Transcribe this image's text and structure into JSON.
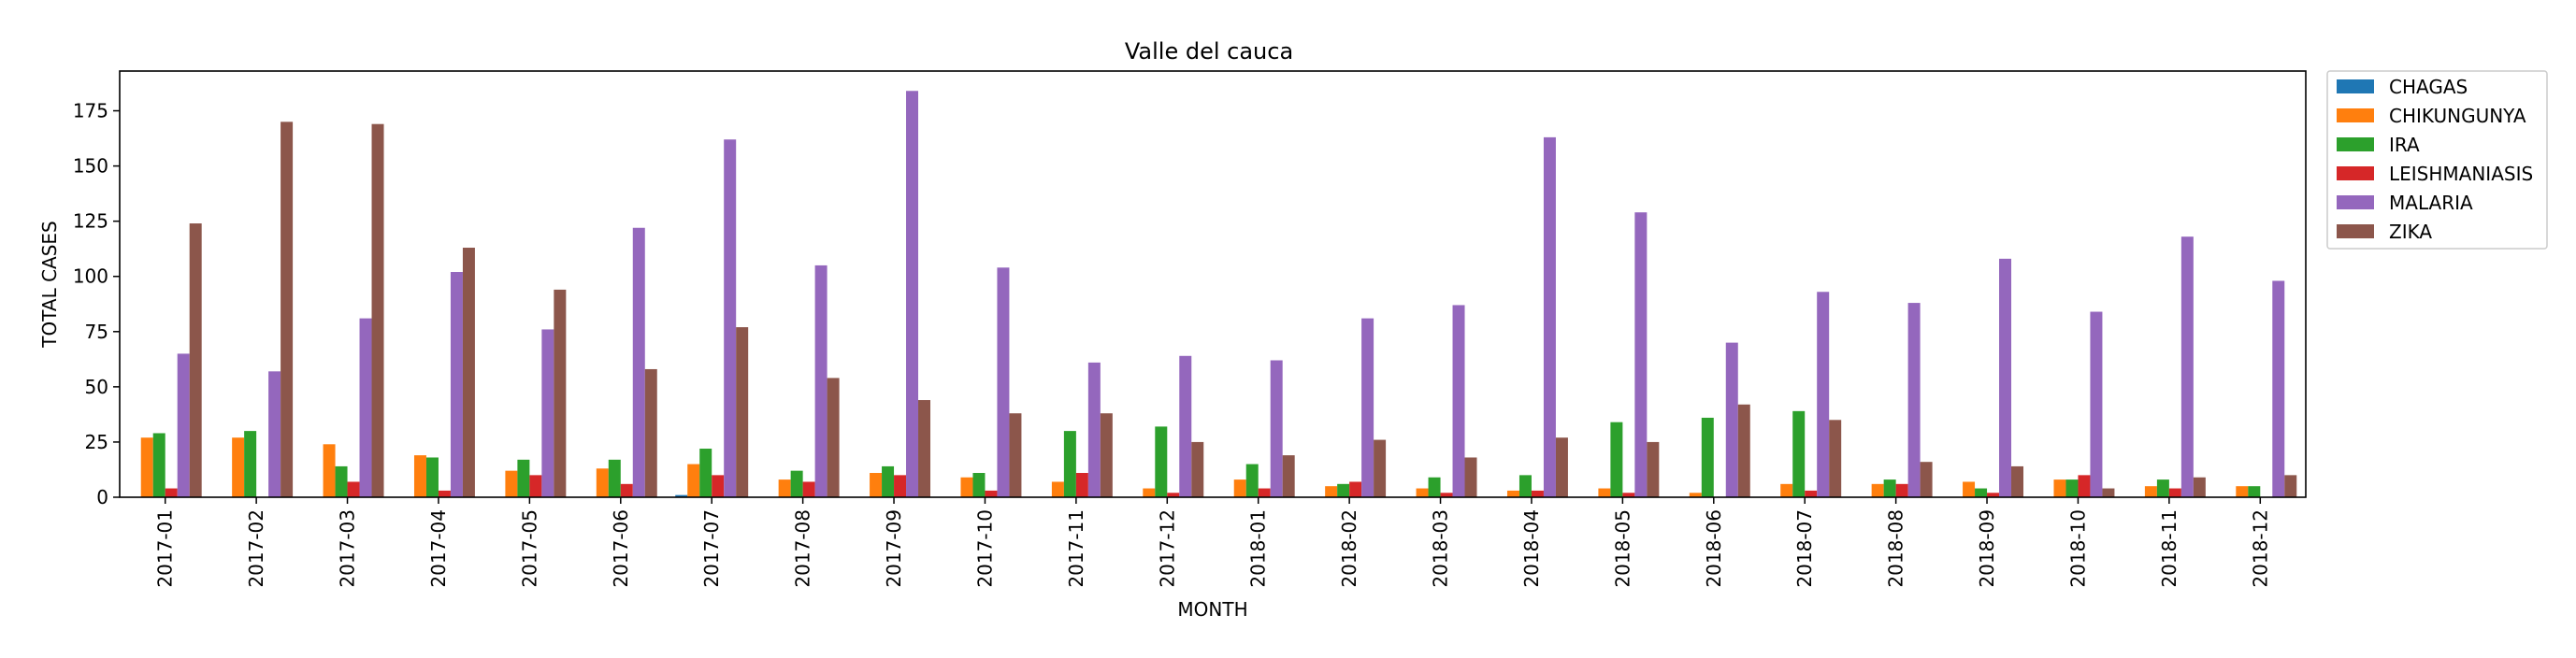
{
  "chart_data": {
    "type": "bar",
    "title": "Valle del cauca",
    "xlabel": "MONTH",
    "ylabel": "TOTAL CASES",
    "ylim": [
      0,
      193
    ],
    "yticks": [
      0,
      25,
      50,
      75,
      100,
      125,
      150,
      175
    ],
    "grid": false,
    "legend_position": "outside-top-right",
    "categories": [
      "2017-01",
      "2017-02",
      "2017-03",
      "2017-04",
      "2017-05",
      "2017-06",
      "2017-07",
      "2017-08",
      "2017-09",
      "2017-10",
      "2017-11",
      "2017-12",
      "2018-01",
      "2018-02",
      "2018-03",
      "2018-04",
      "2018-05",
      "2018-06",
      "2018-07",
      "2018-08",
      "2018-09",
      "2018-10",
      "2018-11",
      "2018-12"
    ],
    "series": [
      {
        "name": "CHAGAS",
        "color": "#1f77b4",
        "values": [
          0,
          0,
          0,
          0,
          0,
          0,
          1,
          0,
          0,
          0,
          0,
          0,
          0,
          0,
          0,
          0,
          0,
          0,
          0,
          0,
          0,
          0,
          0,
          0
        ]
      },
      {
        "name": "CHIKUNGUNYA",
        "color": "#ff7f0e",
        "values": [
          27,
          27,
          24,
          19,
          12,
          13,
          15,
          8,
          11,
          9,
          7,
          4,
          8,
          5,
          4,
          3,
          4,
          2,
          6,
          6,
          7,
          8,
          5,
          5
        ]
      },
      {
        "name": "IRA",
        "color": "#2ca02c",
        "values": [
          29,
          30,
          14,
          18,
          17,
          17,
          22,
          12,
          14,
          11,
          30,
          32,
          15,
          6,
          9,
          10,
          34,
          36,
          39,
          8,
          4,
          8,
          8,
          5
        ]
      },
      {
        "name": "LEISHMANIASIS",
        "color": "#d62728",
        "values": [
          4,
          0,
          7,
          3,
          10,
          6,
          10,
          7,
          10,
          3,
          11,
          2,
          4,
          7,
          2,
          3,
          2,
          0,
          3,
          6,
          2,
          10,
          4,
          0
        ]
      },
      {
        "name": "MALARIA",
        "color": "#9467bd",
        "values": [
          65,
          57,
          81,
          102,
          76,
          122,
          162,
          105,
          184,
          104,
          61,
          64,
          62,
          81,
          87,
          163,
          129,
          70,
          93,
          88,
          108,
          84,
          118,
          98
        ]
      },
      {
        "name": "ZIKA",
        "color": "#8c564b",
        "values": [
          124,
          170,
          169,
          113,
          94,
          58,
          77,
          54,
          44,
          38,
          38,
          25,
          19,
          26,
          18,
          27,
          25,
          42,
          35,
          16,
          14,
          4,
          9,
          10
        ]
      }
    ]
  }
}
